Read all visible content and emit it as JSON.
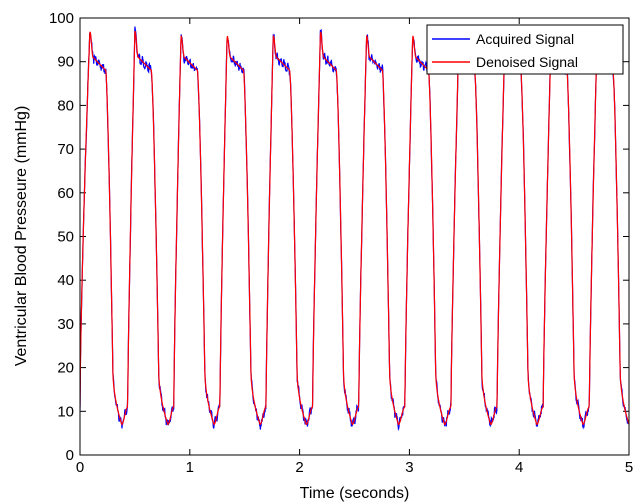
{
  "chart_data": {
    "type": "line",
    "title": "",
    "xlabel": "Time (seconds)",
    "ylabel": "Ventricular Blood Presseure (mmHg)",
    "xlim": [
      0,
      5
    ],
    "ylim": [
      0,
      100
    ],
    "xticks": [
      0,
      1,
      2,
      3,
      4,
      5
    ],
    "yticks": [
      0,
      10,
      20,
      30,
      40,
      50,
      60,
      70,
      80,
      90,
      100
    ],
    "grid": false,
    "legend_position": "top-right",
    "beats": {
      "start_time": 0.0,
      "peak_times": [
        0.09,
        0.5,
        0.92,
        1.34,
        1.76,
        2.19,
        2.61,
        3.03,
        3.45,
        3.87,
        4.29,
        4.71
      ],
      "peak_values": [
        97,
        97,
        96,
        96,
        96,
        97,
        96,
        96,
        95,
        96,
        95,
        96
      ],
      "trough_times": [
        0.38,
        0.8,
        1.22,
        1.64,
        2.06,
        2.48,
        2.9,
        3.32,
        3.74,
        4.16,
        4.58,
        5.0
      ],
      "trough_values": [
        7,
        7,
        7,
        7,
        7,
        7,
        7,
        7,
        7,
        7,
        7,
        7
      ],
      "plateau_value": 90
    },
    "series": [
      {
        "name": "Acquired Signal",
        "color": "#0000ff",
        "style": "noisy"
      },
      {
        "name": "Denoised Signal",
        "color": "#ff0000",
        "style": "smooth"
      }
    ]
  }
}
